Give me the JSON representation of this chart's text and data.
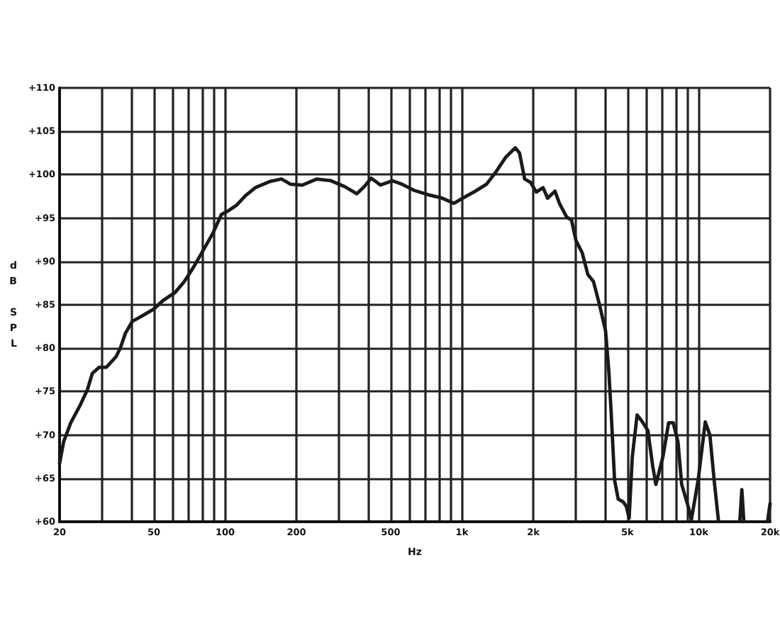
{
  "chart_data": {
    "type": "line",
    "xlabel": "Hz",
    "ylabel": "dB SPL",
    "log": "x",
    "xlim": [
      20,
      20000
    ],
    "ylim": [
      60,
      110
    ],
    "xticks": [
      20,
      {
        "value": 30,
        "label": null
      },
      {
        "value": 40,
        "label": null
      },
      50,
      {
        "value": 60,
        "label": null
      },
      {
        "value": 70,
        "label": null
      },
      {
        "value": 80,
        "label": null
      },
      {
        "value": 90,
        "label": null
      },
      100,
      200,
      {
        "value": 300,
        "label": null
      },
      {
        "value": 400,
        "label": null
      },
      500,
      {
        "value": 600,
        "label": null
      },
      {
        "value": 700,
        "label": null
      },
      {
        "value": 800,
        "label": null
      },
      {
        "value": 900,
        "label": null
      },
      {
        "value": 1000,
        "label": "1k"
      },
      {
        "value": 2000,
        "label": "2k"
      },
      {
        "value": 3000,
        "label": null
      },
      {
        "value": 4000,
        "label": null
      },
      {
        "value": 5000,
        "label": "5k"
      },
      {
        "value": 6000,
        "label": null
      },
      {
        "value": 7000,
        "label": null
      },
      {
        "value": 8000,
        "label": null
      },
      {
        "value": 9000,
        "label": null
      },
      {
        "value": 10000,
        "label": "10k"
      },
      {
        "value": 20000,
        "label": "20k"
      }
    ],
    "yticks": [
      {
        "value": 60,
        "label": "+60"
      },
      {
        "value": 65,
        "label": "+65"
      },
      {
        "value": 70,
        "label": "+70"
      },
      {
        "value": 75,
        "label": "+75"
      },
      {
        "value": 80,
        "label": "+80"
      },
      {
        "value": 85,
        "label": "+85"
      },
      {
        "value": 90,
        "label": "+90"
      },
      {
        "value": 95,
        "label": "+95"
      },
      {
        "value": 100,
        "label": "+100"
      },
      {
        "value": 105,
        "label": "+105"
      },
      {
        "value": 110,
        "label": "+110"
      }
    ],
    "grid": true,
    "marker": "none",
    "line_style": "solid",
    "series": [
      {
        "color": "#1a1a1a",
        "x": [
          20,
          20.8,
          22.3,
          24.5,
          26.2,
          27.5,
          29.4,
          31.5,
          34.6,
          36.2,
          37.9,
          40.6,
          44.5,
          49.9,
          54.7,
          61.4,
          67.3,
          73.8,
          80.9,
          88.6,
          96.4,
          104,
          112,
          122,
          134,
          154,
          173,
          189,
          212,
          244,
          280,
          321,
          360,
          386,
          414,
          453,
          508,
          558,
          627,
          718,
          824,
          925,
          1010,
          1140,
          1270,
          1390,
          1530,
          1680,
          1750,
          1840,
          1950,
          2060,
          2200,
          2300,
          2470,
          2580,
          2770,
          2900,
          3030,
          3220,
          3400,
          3590,
          3810,
          4040,
          4170,
          4270,
          4410,
          4570,
          4790,
          4940,
          5080,
          5240,
          5490,
          5750,
          6100,
          6390,
          6590,
          7060,
          7460,
          7800,
          8170,
          8470,
          9080,
          9300,
          9940,
          10650,
          11140,
          11660,
          12100,
          13500,
          14900,
          15200,
          15500,
          17500,
          19500,
          20000
        ],
        "values": [
          66.7,
          69.2,
          71.4,
          73.5,
          75.2,
          77.1,
          77.8,
          77.8,
          79.0,
          80.1,
          81.7,
          83.1,
          83.7,
          84.5,
          85.5,
          86.4,
          87.7,
          89.4,
          91.3,
          93.2,
          95.4,
          95.9,
          96.5,
          97.6,
          98.5,
          99.2,
          99.5,
          98.9,
          98.8,
          99.5,
          99.3,
          98.6,
          97.8,
          98.6,
          99.6,
          98.8,
          99.3,
          98.9,
          98.2,
          97.7,
          97.3,
          96.7,
          97.3,
          98.1,
          98.9,
          100.3,
          102.0,
          103.1,
          102.5,
          99.5,
          99.1,
          98.0,
          98.5,
          97.3,
          98.1,
          96.7,
          95.1,
          94.8,
          92.4,
          91.0,
          88.5,
          87.7,
          85.0,
          82.0,
          77.4,
          72.4,
          64.8,
          62.6,
          62.3,
          61.8,
          60.4,
          67.5,
          72.3,
          71.6,
          70.5,
          66.4,
          64.3,
          67.5,
          71.4,
          71.4,
          69.2,
          64.3,
          61.5,
          60.2,
          64.8,
          71.5,
          70.0,
          64.3,
          60.2,
          null,
          60,
          63.7,
          60,
          null,
          60,
          62.1
        ]
      }
    ]
  }
}
